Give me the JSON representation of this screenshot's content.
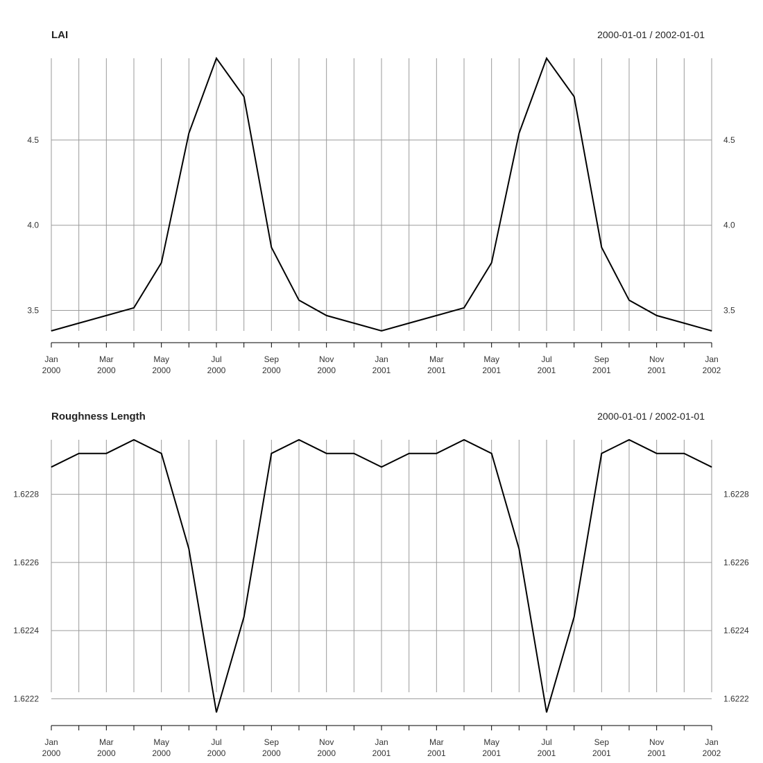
{
  "chart_data": [
    {
      "type": "line",
      "title": "LAI",
      "date_range": "2000-01-01 / 2002-01-01",
      "x": [
        "2000-01",
        "2000-02",
        "2000-03",
        "2000-04",
        "2000-05",
        "2000-06",
        "2000-07",
        "2000-08",
        "2000-09",
        "2000-10",
        "2000-11",
        "2000-12",
        "2001-01",
        "2001-02",
        "2001-03",
        "2001-04",
        "2001-05",
        "2001-06",
        "2001-07",
        "2001-08",
        "2001-09",
        "2001-10",
        "2001-11",
        "2001-12",
        "2002-01"
      ],
      "series": [
        {
          "values": [
            3.38,
            3.425,
            3.47,
            3.515,
            3.78,
            4.54,
            4.98,
            4.755,
            3.87,
            3.56,
            3.47,
            3.425,
            3.38,
            3.425,
            3.47,
            3.515,
            3.78,
            4.54,
            4.98,
            4.755,
            3.87,
            3.56,
            3.47,
            3.425,
            3.38
          ]
        }
      ],
      "ylim": [
        3.38,
        4.98
      ],
      "yticks": [
        "3.5",
        "4.0",
        "4.5"
      ],
      "xtick_labels": [
        [
          "Jan",
          "2000"
        ],
        [
          "Mar",
          "2000"
        ],
        [
          "May",
          "2000"
        ],
        [
          "Jul",
          "2000"
        ],
        [
          "Sep",
          "2000"
        ],
        [
          "Nov",
          "2000"
        ],
        [
          "Jan",
          "2001"
        ],
        [
          "Mar",
          "2001"
        ],
        [
          "May",
          "2001"
        ],
        [
          "Jul",
          "2001"
        ],
        [
          "Sep",
          "2001"
        ],
        [
          "Nov",
          "2001"
        ],
        [
          "Jan",
          "2002"
        ]
      ],
      "grid": true,
      "color": "#000000"
    },
    {
      "type": "line",
      "title": "Roughness Length",
      "date_range": "2000-01-01 / 2002-01-01",
      "x": [
        "2000-01",
        "2000-02",
        "2000-03",
        "2000-04",
        "2000-05",
        "2000-06",
        "2000-07",
        "2000-08",
        "2000-09",
        "2000-10",
        "2000-11",
        "2000-12",
        "2001-01",
        "2001-02",
        "2001-03",
        "2001-04",
        "2001-05",
        "2001-06",
        "2001-07",
        "2001-08",
        "2001-09",
        "2001-10",
        "2001-11",
        "2001-12",
        "2002-01"
      ],
      "series": [
        {
          "values": [
            1.62288,
            1.62292,
            1.62292,
            1.62296,
            1.62292,
            1.62264,
            1.62216,
            1.62244,
            1.62292,
            1.62296,
            1.62292,
            1.62292,
            1.62288,
            1.62292,
            1.62292,
            1.62296,
            1.62292,
            1.62264,
            1.62216,
            1.62244,
            1.62292,
            1.62296,
            1.62292,
            1.62292,
            1.62288
          ]
        }
      ],
      "ylim": [
        1.62216,
        1.62296
      ],
      "yticks": [
        "1.6222",
        "1.6224",
        "1.6226",
        "1.6228"
      ],
      "xtick_labels": [
        [
          "Jan",
          "2000"
        ],
        [
          "Mar",
          "2000"
        ],
        [
          "May",
          "2000"
        ],
        [
          "Jul",
          "2000"
        ],
        [
          "Sep",
          "2000"
        ],
        [
          "Nov",
          "2000"
        ],
        [
          "Jan",
          "2001"
        ],
        [
          "Mar",
          "2001"
        ],
        [
          "May",
          "2001"
        ],
        [
          "Jul",
          "2001"
        ],
        [
          "Sep",
          "2001"
        ],
        [
          "Nov",
          "2001"
        ],
        [
          "Jan",
          "2002"
        ]
      ],
      "grid": true,
      "color": "#000000"
    }
  ]
}
